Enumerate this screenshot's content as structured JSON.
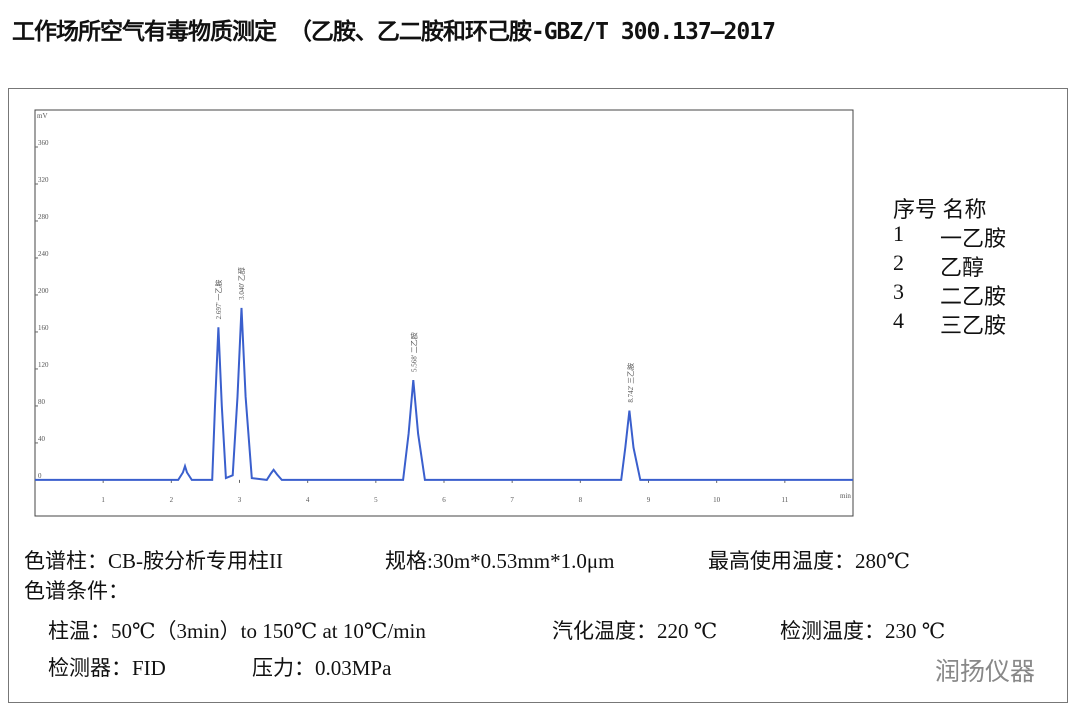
{
  "title": "工作场所空气有毒物质测定 （乙胺、乙二胺和环己胺-GBZ/T 300.137—2017",
  "chart_data": {
    "type": "line",
    "y_label": "mV",
    "x_label": "min",
    "color": "#3a5fcd",
    "grid": false,
    "xlim": [
      0,
      12
    ],
    "ylim": [
      -39,
      400
    ],
    "xticks": [
      1,
      2,
      3,
      4,
      5,
      6,
      7,
      8,
      9,
      10,
      11
    ],
    "yticks": [
      0,
      40,
      80,
      120,
      160,
      200,
      240,
      280,
      320,
      360
    ],
    "x": [
      0,
      2.1,
      2.17,
      2.2,
      2.23,
      2.3,
      2.6,
      2.64,
      2.69,
      2.74,
      2.8,
      2.9,
      2.97,
      3.03,
      3.09,
      3.18,
      3.4,
      3.46,
      3.5,
      3.55,
      3.62,
      5.4,
      5.48,
      5.55,
      5.62,
      5.72,
      8.6,
      8.66,
      8.72,
      8.78,
      8.88,
      12
    ],
    "y": [
      0,
      0,
      8,
      15,
      8,
      0,
      0,
      80,
      165,
      80,
      2,
      5,
      90,
      186,
      90,
      2,
      0,
      7,
      11,
      6,
      0,
      0,
      50,
      108,
      50,
      0,
      0,
      35,
      75,
      35,
      0,
      0
    ],
    "peak_labels": [
      {
        "text": "2.697' 一乙胺",
        "x": 2.697
      },
      {
        "text": "3.040' 乙醇",
        "x": 3.04
      },
      {
        "text": "5.568' 二乙胺",
        "x": 5.568
      },
      {
        "text": "8.742' 三乙胺",
        "x": 8.742
      }
    ]
  },
  "legend_table": {
    "header": [
      "序号",
      "名称"
    ],
    "rows": [
      [
        "1",
        "一乙胺"
      ],
      [
        "2",
        "乙醇"
      ],
      [
        "3",
        "二乙胺"
      ],
      [
        "4",
        "三乙胺"
      ]
    ]
  },
  "conditions": {
    "column": "色谱柱：CB-胺分析专用柱II",
    "spec": "规格:30m*0.53mm*1.0μm",
    "max_temp": "最高使用温度：280℃",
    "heading": "色谱条件：",
    "oven": "柱温：50℃（3min）to 150℃ at 10℃/min",
    "injector": "汽化温度：220 ℃",
    "detector_temp": "检测温度：230 ℃",
    "detector": "检测器：FID",
    "pressure": "压力：0.03MPa"
  },
  "watermark": "润扬仪器"
}
